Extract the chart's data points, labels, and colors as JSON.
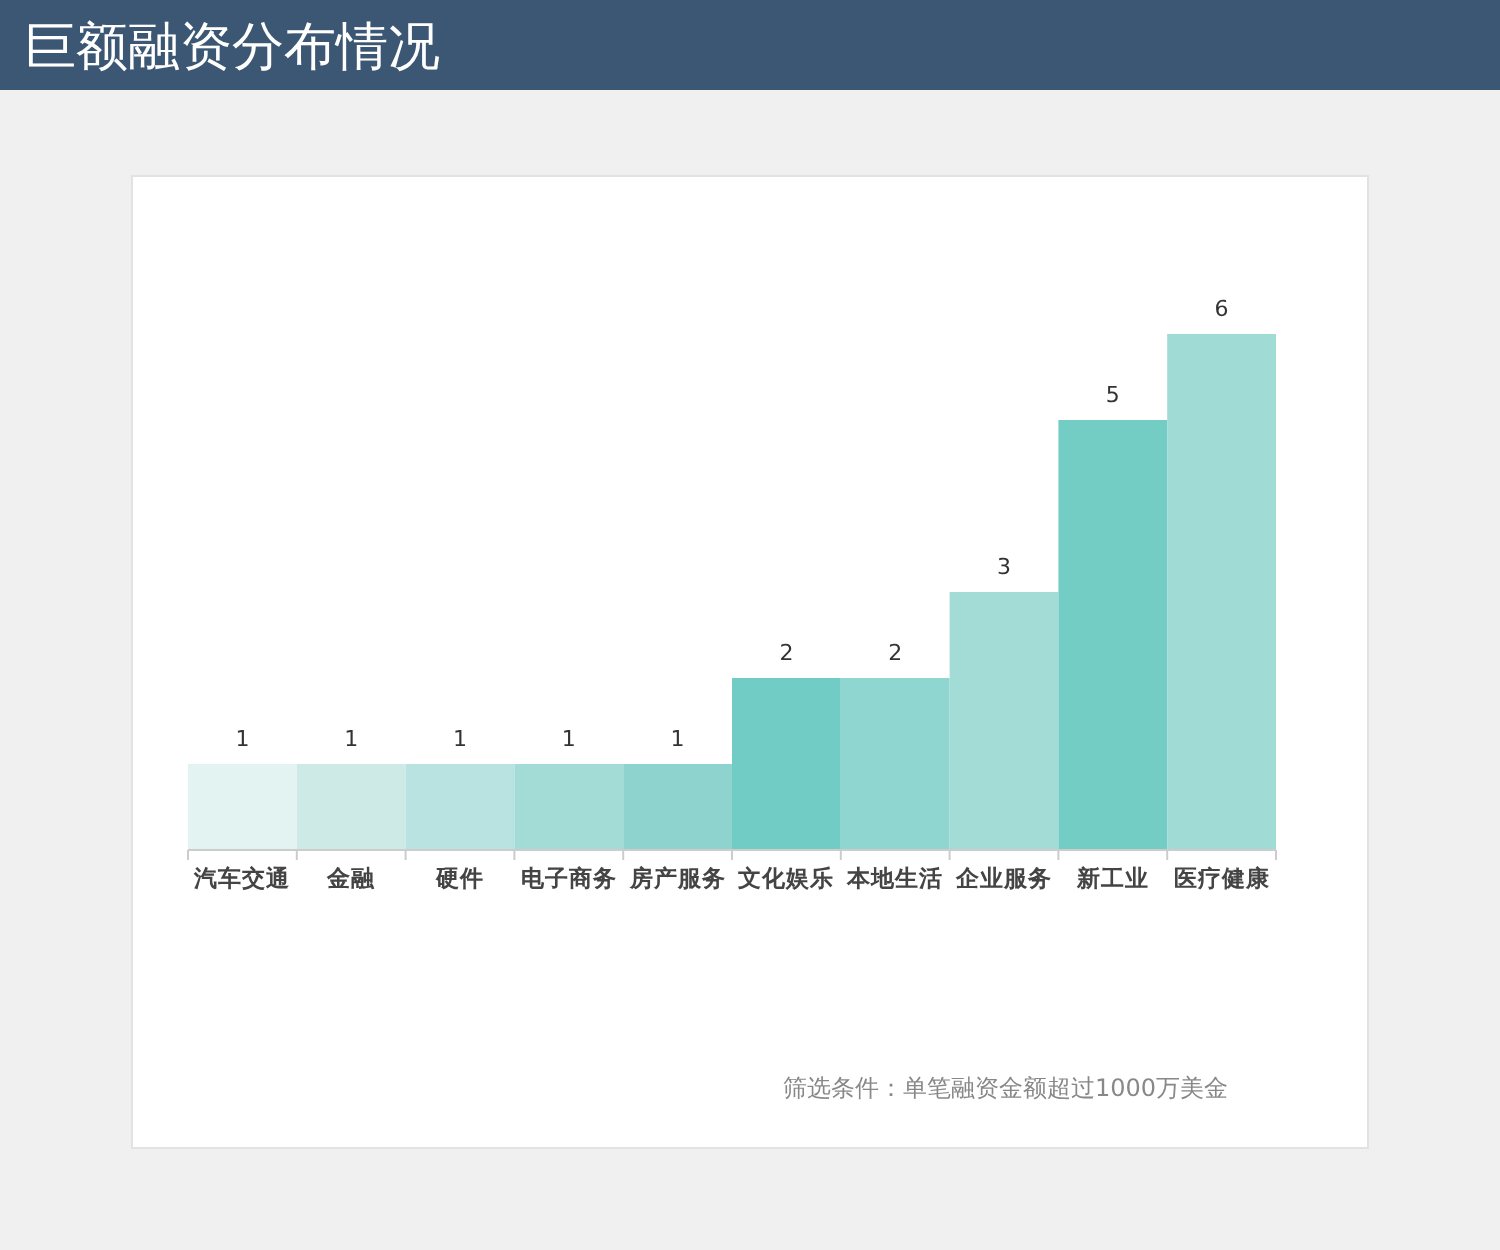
{
  "chart_data": {
    "type": "bar",
    "title": "巨额融资分布情况",
    "categories": [
      "汽车交通",
      "金融",
      "硬件",
      "电子商务",
      "房产服务",
      "文化娱乐",
      "本地生活",
      "企业服务",
      "新工业",
      "医疗健康"
    ],
    "values": [
      1,
      1,
      1,
      1,
      1,
      2,
      2,
      3,
      5,
      6
    ],
    "colors": [
      "#e3f3f1",
      "#cdeae7",
      "#b8e3e0",
      "#a3dbd7",
      "#8fd3ce",
      "#70ccc5",
      "#8fd6d0",
      "#a3dbd7",
      "#74cdc5",
      "#a0dbd6"
    ],
    "data_labels": true,
    "annotations": [
      "筛选条件：单笔融资金额超过1000万美金"
    ]
  }
}
